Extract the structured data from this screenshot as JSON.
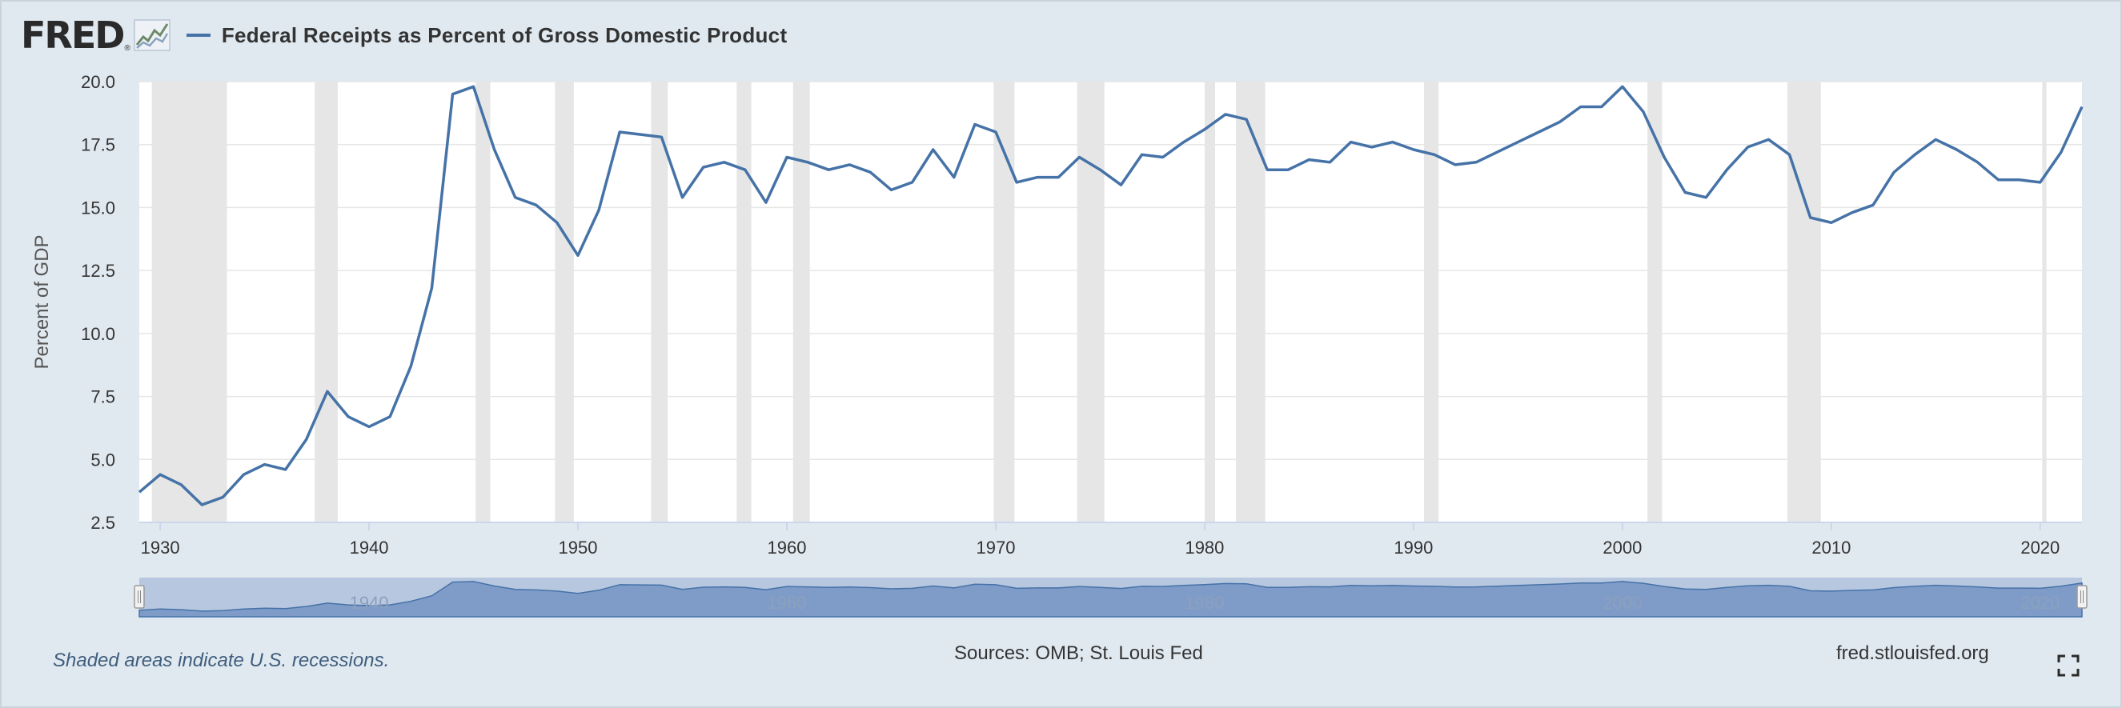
{
  "brand": {
    "logo": "FRED",
    "registered": "®",
    "logo_icon": "trend-graph-icon"
  },
  "title": "Federal Receipts as Percent of Gross Domestic Product",
  "footer": {
    "recession_note": "Shaded areas indicate U.S. recessions.",
    "sources": "Sources: OMB; St. Louis Fed",
    "site": "fred.stlouisfed.org",
    "fullscreen_icon": "fullscreen-icon"
  },
  "colors": {
    "series": "#4572a7",
    "recession": "#e6e6e6",
    "background": "#e1e9f0",
    "navigator_fill": "#7f9cc9",
    "navigator_mask": "#b7c7df"
  },
  "chart_data": {
    "type": "line",
    "title": "Federal Receipts as Percent of Gross Domestic Product",
    "xlabel": "",
    "ylabel": "Percent of GDP",
    "xlim": [
      1929,
      2022
    ],
    "ylim": [
      2.5,
      20.0
    ],
    "yticks": [
      "2.5",
      "5.0",
      "7.5",
      "10.0",
      "12.5",
      "15.0",
      "17.5",
      "20.0"
    ],
    "xticks": [
      "1930",
      "1940",
      "1950",
      "1960",
      "1970",
      "1980",
      "1990",
      "2000",
      "2010",
      "2020"
    ],
    "grid": true,
    "series": [
      {
        "name": "Federal Receipts as Percent of Gross Domestic Product",
        "x": [
          1929,
          1930,
          1931,
          1932,
          1933,
          1934,
          1935,
          1936,
          1937,
          1938,
          1939,
          1940,
          1941,
          1942,
          1943,
          1944,
          1945,
          1946,
          1947,
          1948,
          1949,
          1950,
          1951,
          1952,
          1953,
          1954,
          1955,
          1956,
          1957,
          1958,
          1959,
          1960,
          1961,
          1962,
          1963,
          1964,
          1965,
          1966,
          1967,
          1968,
          1969,
          1970,
          1971,
          1972,
          1973,
          1974,
          1975,
          1976,
          1977,
          1978,
          1979,
          1980,
          1981,
          1982,
          1983,
          1984,
          1985,
          1986,
          1987,
          1988,
          1989,
          1990,
          1991,
          1992,
          1993,
          1994,
          1995,
          1996,
          1997,
          1998,
          1999,
          2000,
          2001,
          2002,
          2003,
          2004,
          2005,
          2006,
          2007,
          2008,
          2009,
          2010,
          2011,
          2012,
          2013,
          2014,
          2015,
          2016,
          2017,
          2018,
          2019,
          2020,
          2021,
          2022
        ],
        "values": [
          3.7,
          4.4,
          4.0,
          3.2,
          3.5,
          4.4,
          4.8,
          4.6,
          5.8,
          7.7,
          6.7,
          6.3,
          6.7,
          8.7,
          11.8,
          19.5,
          19.8,
          17.3,
          15.4,
          15.1,
          14.4,
          13.1,
          14.9,
          18.0,
          17.9,
          17.8,
          15.4,
          16.6,
          16.8,
          16.5,
          15.2,
          17.0,
          16.8,
          16.5,
          16.7,
          16.4,
          15.7,
          16.0,
          17.3,
          16.2,
          18.3,
          18.0,
          16.0,
          16.2,
          16.2,
          17.0,
          16.5,
          15.9,
          17.1,
          17.0,
          17.6,
          18.1,
          18.7,
          18.5,
          16.5,
          16.5,
          16.9,
          16.8,
          17.6,
          17.4,
          17.6,
          17.3,
          17.1,
          16.7,
          16.8,
          17.2,
          17.6,
          18.0,
          18.4,
          19.0,
          19.0,
          19.8,
          18.8,
          17.0,
          15.6,
          15.4,
          16.5,
          17.4,
          17.7,
          17.1,
          14.6,
          14.4,
          14.8,
          15.1,
          16.4,
          17.1,
          17.7,
          17.3,
          16.8,
          16.1,
          16.1,
          16.0,
          17.2,
          19.0
        ]
      }
    ],
    "recessions": [
      [
        1929.6,
        1933.2
      ],
      [
        1937.4,
        1938.5
      ],
      [
        1945.1,
        1945.8
      ],
      [
        1948.9,
        1949.8
      ],
      [
        1953.5,
        1954.3
      ],
      [
        1957.6,
        1958.3
      ],
      [
        1960.3,
        1961.1
      ],
      [
        1969.9,
        1970.9
      ],
      [
        1973.9,
        1975.2
      ],
      [
        1980.0,
        1980.5
      ],
      [
        1981.5,
        1982.9
      ],
      [
        1990.5,
        1991.2
      ],
      [
        2001.2,
        2001.9
      ],
      [
        2007.9,
        2009.5
      ],
      [
        2020.1,
        2020.3
      ]
    ],
    "navigator": {
      "tick_labels": [
        "1940",
        "1960",
        "1980",
        "2000",
        "2020"
      ]
    }
  }
}
